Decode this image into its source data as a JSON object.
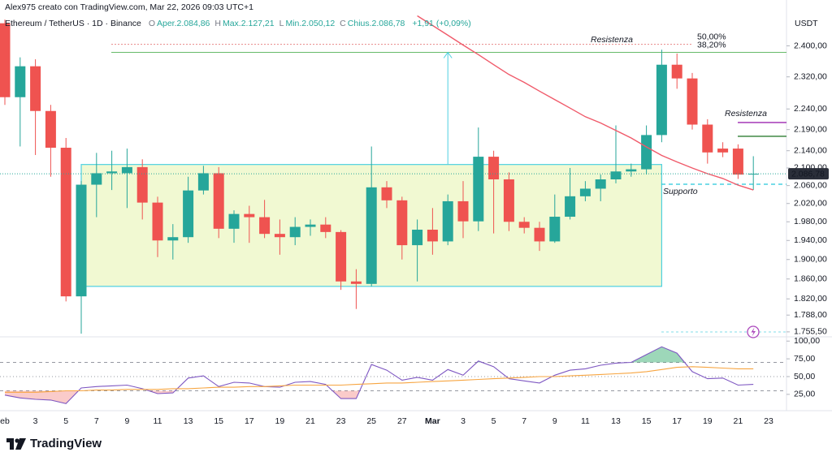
{
  "header": {
    "author": "Alex975 creato con TradingView.com, Mar 22, 2026 09:03 UTC+1",
    "logo": "TradingView"
  },
  "chart_data": [
    {
      "type": "candlestick",
      "title": "Ethereum / TetherUS · 1D · Binance",
      "ohlc_legend": [
        {
          "key": "O",
          "text": "Aper.2.084,86"
        },
        {
          "key": "H",
          "text": "Max.2.127,21"
        },
        {
          "key": "L",
          "text": "Min.2.050,12"
        },
        {
          "key": "C",
          "text": "Chius.2.086,78"
        }
      ],
      "change": "+1,91 (+0,09%)",
      "y_axis_label": "USDT",
      "categories": [
        "eb",
        null,
        "3",
        null,
        "5",
        null,
        "7",
        null,
        "9",
        null,
        "11",
        null,
        "13",
        null,
        "15",
        null,
        "17",
        null,
        "19",
        null,
        "21",
        null,
        "23",
        null,
        "25",
        null,
        "27",
        null,
        "Mar",
        null,
        "3",
        null,
        "5",
        null,
        "7",
        null,
        "9",
        null,
        "11",
        null,
        "13",
        null,
        "15",
        null,
        "17",
        null,
        "19",
        null,
        "21",
        null,
        "23"
      ],
      "open": [
        2460,
        2269,
        2347,
        2235,
        2147,
        1825,
        2062,
        2088,
        2088,
        2102,
        2022,
        1940,
        1947,
        2049,
        2088,
        1965,
        1997,
        1990,
        1954,
        1947,
        1969,
        1974,
        1958,
        1855,
        1850,
        2056,
        2027,
        1930,
        1963,
        1938,
        2025,
        1981,
        2126,
        2074,
        1980,
        1967,
        1938,
        1991,
        2036,
        2053,
        2074,
        2092,
        2097,
        2177,
        2351,
        2316,
        2202,
        2145,
        2145,
        2084.86,
        null
      ],
      "high": [
        2470,
        2370,
        2365,
        2250,
        2170,
        2070,
        2135,
        2140,
        2145,
        2120,
        2035,
        1975,
        2080,
        2105,
        2102,
        2005,
        2015,
        2028,
        1985,
        1990,
        1985,
        1990,
        1962,
        1880,
        2150,
        2070,
        2035,
        1985,
        2010,
        2040,
        2070,
        2195,
        2140,
        2090,
        1990,
        1980,
        2040,
        2100,
        2070,
        2085,
        2200,
        2110,
        2200,
        2390,
        2380,
        2330,
        2215,
        2160,
        2155,
        2127.21,
        null
      ],
      "low": [
        2250,
        2150,
        2130,
        2080,
        1815,
        1752,
        1990,
        2050,
        2010,
        1985,
        1905,
        1900,
        1935,
        2040,
        1945,
        1935,
        1935,
        1945,
        1910,
        1930,
        1950,
        1945,
        1838,
        1800,
        1845,
        2010,
        1900,
        1855,
        1910,
        1930,
        1945,
        1960,
        1955,
        1960,
        1955,
        1918,
        1935,
        1985,
        2025,
        2025,
        2065,
        2080,
        2085,
        2160,
        2290,
        2190,
        2110,
        2125,
        2075,
        2050.12,
        null
      ],
      "close": [
        2269,
        2347,
        2235,
        2147,
        1825,
        2062,
        2088,
        2092,
        2102,
        2022,
        1940,
        1947,
        2049,
        2088,
        1965,
        1997,
        1990,
        1954,
        1947,
        1969,
        1974,
        1958,
        1855,
        1850,
        2056,
        2027,
        1930,
        1963,
        1938,
        2025,
        1981,
        2126,
        2074,
        1980,
        1967,
        1938,
        1991,
        2036,
        2053,
        2074,
        2092,
        2097,
        2177,
        2351,
        2316,
        2202,
        2136,
        2136,
        2084.86,
        2086.78,
        null
      ],
      "up_color": "#26a69a",
      "down_color": "#ef5350",
      "series": [
        {
          "color": "#f05a6a",
          "values": [
            null,
            null,
            null,
            null,
            null,
            null,
            null,
            null,
            null,
            null,
            null,
            null,
            null,
            null,
            null,
            null,
            null,
            null,
            null,
            null,
            null,
            null,
            null,
            null,
            null,
            null,
            null,
            2480,
            2454,
            2428,
            2402,
            2377,
            2351,
            2326,
            2306,
            2284,
            2263,
            2242,
            2221,
            2206,
            2188,
            2170,
            2149,
            2129,
            2114,
            2100,
            2087,
            2076,
            2061,
            2050,
            null
          ]
        }
      ],
      "log_scale": true,
      "ylim": [
        1746,
        2490
      ],
      "yticks": [
        {
          "value": 2400,
          "label": "2.400,00"
        },
        {
          "value": 2320,
          "label": "2.320,00"
        },
        {
          "value": 2240,
          "label": "2.240,00"
        },
        {
          "value": 2190,
          "label": "2.190,00"
        },
        {
          "value": 2140,
          "label": "2.140,00"
        },
        {
          "value": 2100,
          "label": "2.100,00"
        },
        {
          "value": 2060,
          "label": "2.060,00"
        },
        {
          "value": 2020,
          "label": "2.020,00"
        },
        {
          "value": 1980,
          "label": "1.980,00"
        },
        {
          "value": 1940,
          "label": "1.940,00"
        },
        {
          "value": 1900,
          "label": "1.900,00"
        },
        {
          "value": 1860,
          "label": "1.860,00"
        },
        {
          "value": 1820,
          "label": "1.820,00"
        },
        {
          "value": 1788,
          "label": "1.788,00"
        },
        {
          "value": 1755.5,
          "label": "1.755,50"
        }
      ],
      "last_price": {
        "value": 2086.78,
        "label": "2.086,78"
      },
      "zone": [
        1845,
        2108
      ],
      "levels": [
        {
          "label": "50,00%",
          "value": 2404,
          "color": "#e57373"
        },
        {
          "label": "38,20%",
          "value": 2383,
          "color": "#4caf50"
        }
      ],
      "lines": [
        {
          "value": 2207,
          "color": "#9c27b0"
        },
        {
          "value": 2174,
          "color": "#2e7d32"
        },
        {
          "value": 2063,
          "color": "#26c6da"
        }
      ],
      "annotations": [
        {
          "text": "Resistenza",
          "color": "#e5484d"
        },
        {
          "text": "Resistenza",
          "color": "#ab47bc"
        },
        {
          "text": "Supporto",
          "color": "#26c6da"
        }
      ]
    },
    {
      "type": "line",
      "series": [
        {
          "color": "#7e57c2",
          "values": [
            24,
            20,
            18,
            17,
            12,
            34,
            36,
            37,
            38,
            33,
            26,
            27,
            48,
            51,
            36,
            42,
            41,
            36,
            35,
            42,
            43,
            39,
            19,
            19,
            67,
            59,
            45,
            49,
            45,
            60,
            52,
            72,
            64,
            47,
            44,
            41,
            52,
            59,
            61,
            66,
            69,
            70,
            81,
            92,
            83,
            57,
            47,
            48,
            38,
            39,
            null
          ]
        },
        {
          "color": "#f7a541",
          "values": [
            28,
            28,
            28,
            29,
            30,
            30,
            31,
            31,
            32,
            32,
            32,
            33,
            33,
            34,
            35,
            35,
            36,
            36,
            37,
            38,
            38,
            38,
            38,
            39,
            40,
            41,
            41,
            42,
            43,
            44,
            45,
            46,
            47,
            48,
            49,
            50,
            50,
            51,
            52,
            53,
            54,
            55,
            57,
            60,
            63,
            64,
            63,
            62,
            61,
            61,
            null
          ]
        }
      ],
      "ylim": [
        2,
        106
      ],
      "yticks": [
        {
          "value": 100,
          "label": "100,00"
        },
        {
          "value": 75,
          "label": "75,00"
        },
        {
          "value": 50,
          "label": "50,00"
        },
        {
          "value": 25,
          "label": "25,00"
        }
      ],
      "bands": [
        70,
        50,
        30
      ]
    }
  ]
}
